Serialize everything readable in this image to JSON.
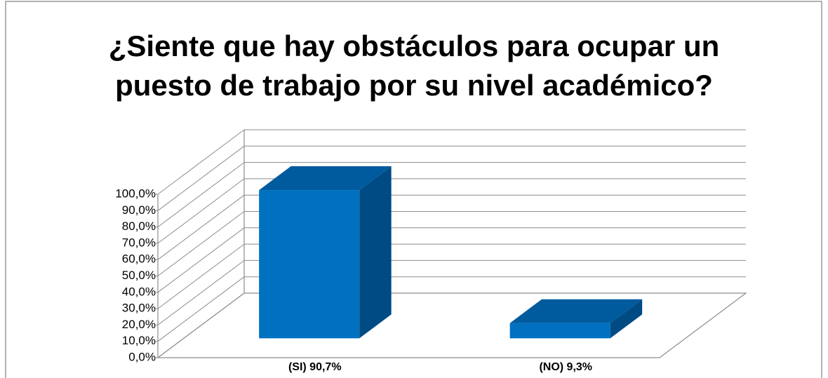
{
  "chart_data": {
    "type": "bar3d",
    "title": "¿Siente que hay obstáculos  para ocupar un puesto de trabajo por su nivel académico?",
    "categories": [
      "(SI) 90,7%",
      "(NO) 9,3%"
    ],
    "values": [
      90.7,
      9.3
    ],
    "color": "#0070c0",
    "ylim": [
      0,
      100
    ],
    "yticks": [
      {
        "value": 0,
        "label": "0,0%"
      },
      {
        "value": 10,
        "label": "10,0%"
      },
      {
        "value": 20,
        "label": "20,0%"
      },
      {
        "value": 30,
        "label": "30,0%"
      },
      {
        "value": 40,
        "label": "40,0%"
      },
      {
        "value": 50,
        "label": "50,0%"
      },
      {
        "value": 60,
        "label": "60,0%"
      },
      {
        "value": 70,
        "label": "70,0%"
      },
      {
        "value": 80,
        "label": "80,0%"
      },
      {
        "value": 90,
        "label": "90,0%"
      },
      {
        "value": 100,
        "label": "100,0%"
      }
    ],
    "grid": true
  }
}
